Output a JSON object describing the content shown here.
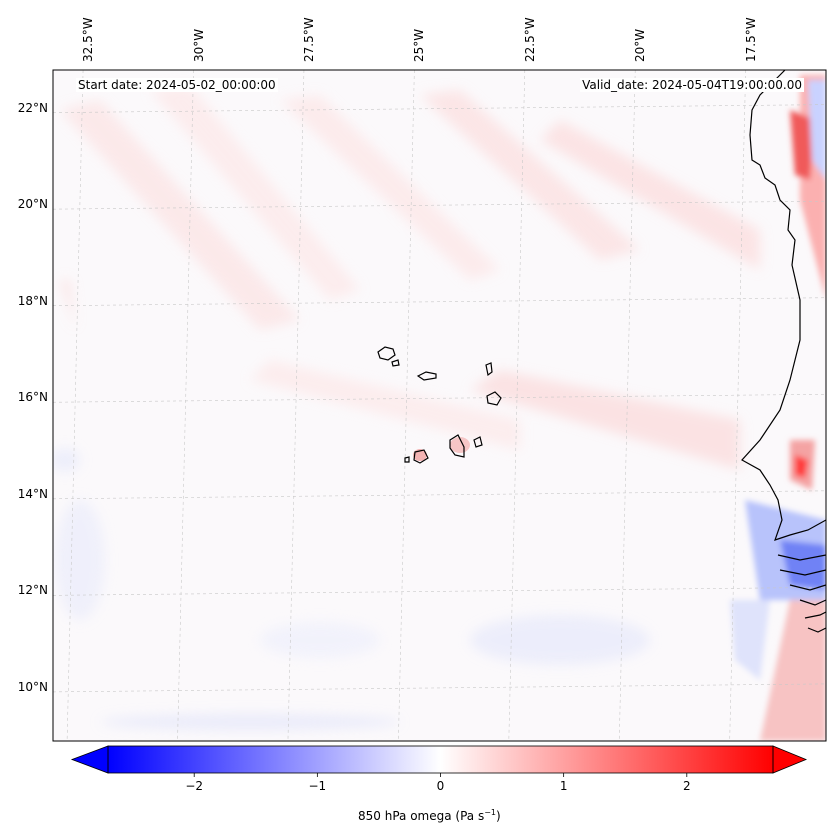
{
  "chart_data": {
    "type": "heatmap",
    "variable": "850 hPa omega",
    "units_label": "Pa s",
    "units_exponent": "−1",
    "annotations": {
      "start": "Start date: 2024-05-02_00:00:00",
      "valid": "Valid_date: 2024-05-04T19:00:00.00"
    },
    "lon_ticks": [
      {
        "value": -32.5,
        "label": "32.5°W"
      },
      {
        "value": -30.0,
        "label": "30°W"
      },
      {
        "value": -27.5,
        "label": "27.5°W"
      },
      {
        "value": -25.0,
        "label": "25°W"
      },
      {
        "value": -22.5,
        "label": "22.5°W"
      },
      {
        "value": -20.0,
        "label": "20°W"
      },
      {
        "value": -17.5,
        "label": "17.5°W"
      }
    ],
    "lat_ticks": [
      {
        "value": 22,
        "label": "22°N"
      },
      {
        "value": 20,
        "label": "20°N"
      },
      {
        "value": 18,
        "label": "18°N"
      },
      {
        "value": 16,
        "label": "16°N"
      },
      {
        "value": 14,
        "label": "14°N"
      },
      {
        "value": 12,
        "label": "12°N"
      },
      {
        "value": 10,
        "label": "10°N"
      }
    ],
    "colorbar": {
      "vmin": -2.7,
      "vmax": 2.7,
      "ticks": [
        {
          "value": -2,
          "label": "−2"
        },
        {
          "value": -1,
          "label": "−1"
        },
        {
          "value": 0,
          "label": "0"
        },
        {
          "value": 1,
          "label": "1"
        },
        {
          "value": 2,
          "label": "2"
        }
      ],
      "extend": "both",
      "colormap": "bwr",
      "low_color": "#0000ff",
      "mid_color": "#ffffff",
      "high_color": "#ff0000"
    },
    "lon_range": [
      -33.0,
      -15.5
    ],
    "lat_range": [
      8.9,
      22.8
    ],
    "grid": true,
    "field_features": [
      {
        "name": "coastal-upwind-max",
        "lon": -16.2,
        "lat": 14.4,
        "value": 2.3
      },
      {
        "name": "coastal-north-max",
        "lon": -15.9,
        "lat": 21.0,
        "value": 2.0
      },
      {
        "name": "coastal-south-min",
        "lon": -16.0,
        "lat": 12.0,
        "value": -1.8
      },
      {
        "name": "cape-verde-max",
        "lon": -24.6,
        "lat": 14.9,
        "value": 0.8
      }
    ]
  }
}
